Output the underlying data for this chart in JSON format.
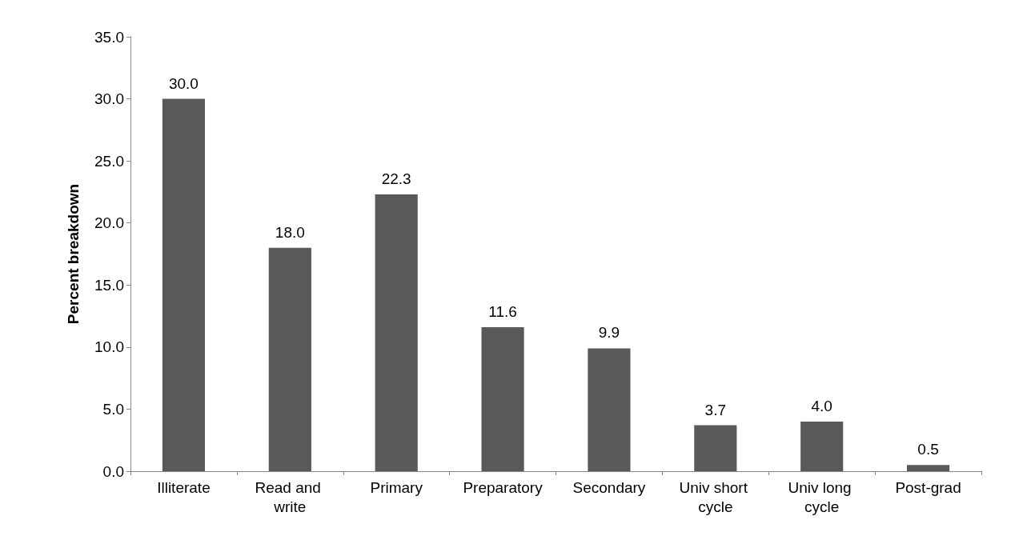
{
  "chart_data": {
    "type": "bar",
    "ylabel": "Percent breakdown",
    "categories": [
      "Illiterate",
      "Read and write",
      "Primary",
      "Preparatory",
      "Secondary",
      "Univ short cycle",
      "Univ long cycle",
      "Post-grad"
    ],
    "values": [
      30.0,
      18.0,
      22.3,
      11.6,
      9.9,
      3.7,
      4.0,
      0.5
    ],
    "value_labels": [
      "30.0",
      "18.0",
      "22.3",
      "11.6",
      "9.9",
      "3.7",
      "4.0",
      "0.5"
    ],
    "color": "#595959",
    "ylim": [
      0,
      35
    ],
    "yticks": [
      {
        "value": 0,
        "label": "0.0"
      },
      {
        "value": 5,
        "label": "5.0"
      },
      {
        "value": 10,
        "label": "10.0"
      },
      {
        "value": 15,
        "label": "15.0"
      },
      {
        "value": 20,
        "label": "20.0"
      },
      {
        "value": 25,
        "label": "25.0"
      },
      {
        "value": 30,
        "label": "30.0"
      },
      {
        "value": 35,
        "label": "35.0"
      }
    ],
    "grid": false
  }
}
